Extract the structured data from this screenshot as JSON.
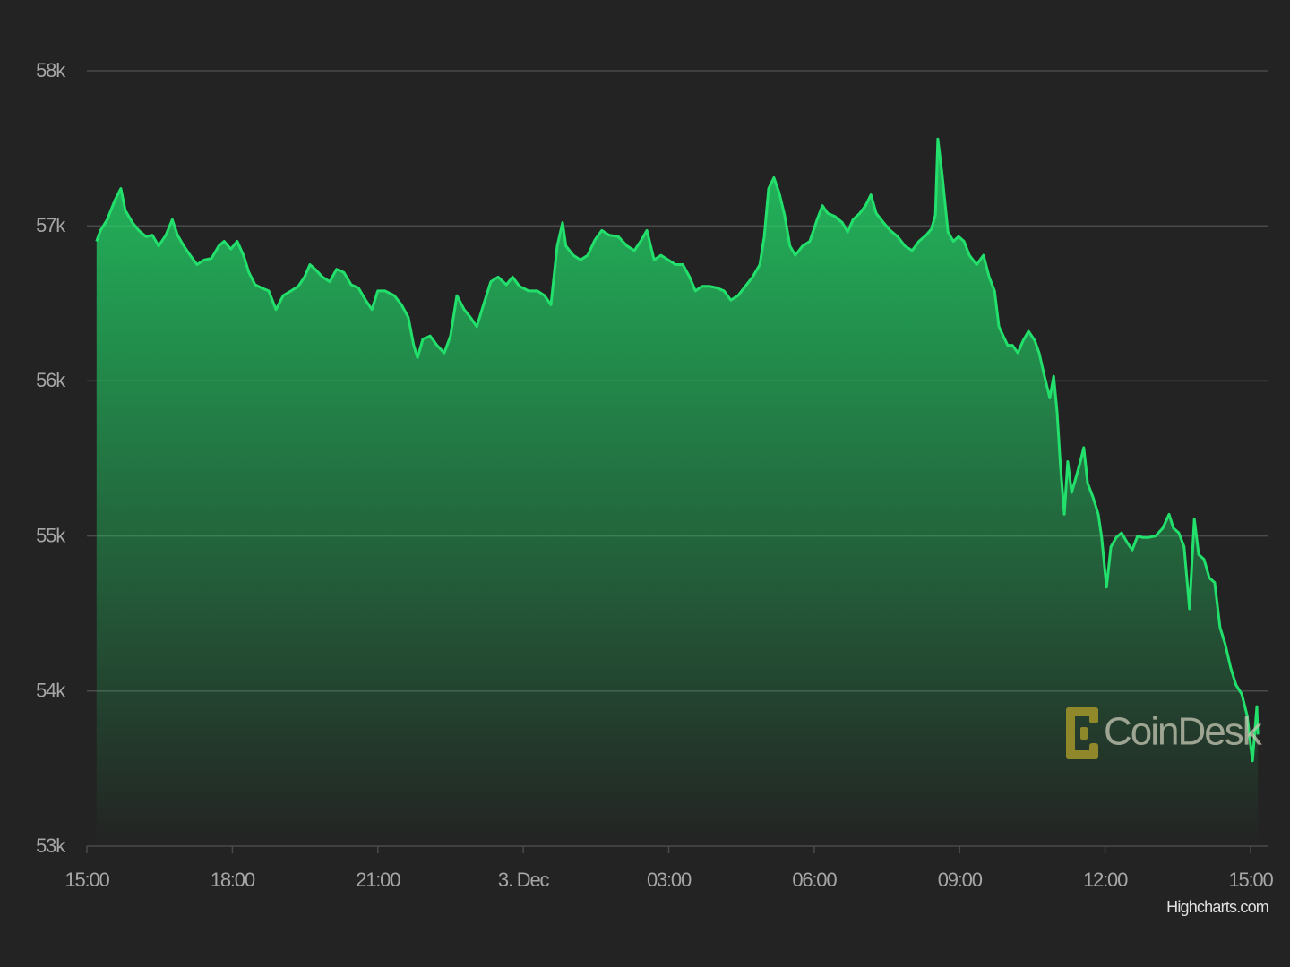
{
  "chart_data": {
    "type": "area",
    "color": "#22e06b",
    "grid": true,
    "watermark": "CoinDesk",
    "credits": "Highcharts.com",
    "ylim": [
      53000,
      58000
    ],
    "yticks": [
      {
        "value": 53000,
        "label": "53k"
      },
      {
        "value": 54000,
        "label": "54k"
      },
      {
        "value": 55000,
        "label": "55k"
      },
      {
        "value": 56000,
        "label": "56k"
      },
      {
        "value": 57000,
        "label": "57k"
      },
      {
        "value": 58000,
        "label": "58k"
      }
    ],
    "xlim": [
      0,
      24.37
    ],
    "xticks": [
      {
        "value": 0,
        "label": "15:00"
      },
      {
        "value": 3,
        "label": "18:00"
      },
      {
        "value": 6,
        "label": "21:00"
      },
      {
        "value": 9,
        "label": "3. Dec"
      },
      {
        "value": 12,
        "label": "03:00"
      },
      {
        "value": 15,
        "label": "06:00"
      },
      {
        "value": 18,
        "label": "09:00"
      },
      {
        "value": 21,
        "label": "12:00"
      },
      {
        "value": 24,
        "label": "15:00"
      }
    ],
    "x": [
      0.2,
      0.28,
      0.42,
      0.57,
      0.7,
      0.79,
      0.94,
      1.07,
      1.22,
      1.35,
      1.48,
      1.63,
      1.76,
      1.87,
      2.0,
      2.13,
      2.27,
      2.42,
      2.57,
      2.72,
      2.83,
      2.97,
      3.1,
      3.23,
      3.34,
      3.47,
      3.6,
      3.75,
      3.9,
      4.05,
      4.21,
      4.36,
      4.49,
      4.6,
      4.71,
      4.86,
      5.01,
      5.15,
      5.3,
      5.45,
      5.6,
      5.75,
      5.88,
      6.0,
      6.15,
      6.34,
      6.49,
      6.63,
      6.74,
      6.82,
      6.93,
      7.08,
      7.22,
      7.37,
      7.5,
      7.63,
      7.78,
      7.91,
      8.04,
      8.18,
      8.33,
      8.48,
      8.65,
      8.78,
      8.92,
      9.11,
      9.29,
      9.44,
      9.57,
      9.7,
      9.81,
      9.88,
      10.03,
      10.18,
      10.33,
      10.48,
      10.62,
      10.77,
      10.96,
      11.14,
      11.29,
      11.44,
      11.55,
      11.7,
      11.84,
      11.99,
      12.14,
      12.29,
      12.43,
      12.55,
      12.69,
      12.84,
      12.99,
      13.14,
      13.28,
      13.43,
      13.58,
      13.73,
      13.88,
      13.97,
      14.06,
      14.17,
      14.28,
      14.39,
      14.5,
      14.61,
      14.76,
      14.91,
      15.06,
      15.17,
      15.28,
      15.43,
      15.58,
      15.69,
      15.8,
      15.94,
      16.06,
      16.17,
      16.28,
      16.43,
      16.57,
      16.72,
      16.87,
      17.02,
      17.16,
      17.31,
      17.42,
      17.5,
      17.55,
      17.64,
      17.76,
      17.87,
      17.98,
      18.09,
      18.2,
      18.35,
      18.49,
      18.61,
      18.72,
      18.81,
      18.9,
      18.99,
      19.09,
      19.2,
      19.31,
      19.42,
      19.55,
      19.64,
      19.75,
      19.86,
      19.94,
      20.01,
      20.08,
      20.16,
      20.23,
      20.31,
      20.42,
      20.49,
      20.56,
      20.64,
      20.75,
      20.86,
      20.93,
      21.03,
      21.12,
      21.23,
      21.34,
      21.45,
      21.56,
      21.67,
      21.78,
      21.89,
      22.04,
      22.19,
      22.32,
      22.41,
      22.52,
      22.63,
      22.74,
      22.84,
      22.93,
      23.04,
      23.15,
      23.26,
      23.37,
      23.48,
      23.59,
      23.7,
      23.82,
      23.93,
      24.04,
      24.13,
      24.15
    ],
    "values": [
      56900,
      56970,
      57040,
      57160,
      57240,
      57100,
      57020,
      56970,
      56930,
      56940,
      56870,
      56940,
      57040,
      56940,
      56870,
      56810,
      56750,
      56780,
      56790,
      56870,
      56900,
      56850,
      56900,
      56810,
      56700,
      56620,
      56600,
      56580,
      56460,
      56550,
      56580,
      56610,
      56670,
      56750,
      56720,
      56670,
      56640,
      56720,
      56700,
      56620,
      56600,
      56520,
      56460,
      56580,
      56580,
      56550,
      56490,
      56410,
      56230,
      56150,
      56270,
      56290,
      56230,
      56180,
      56290,
      56550,
      56460,
      56410,
      56350,
      56490,
      56640,
      56670,
      56620,
      56670,
      56610,
      56580,
      56580,
      56550,
      56490,
      56870,
      57020,
      56870,
      56810,
      56780,
      56810,
      56910,
      56970,
      56940,
      56930,
      56870,
      56840,
      56910,
      56970,
      56780,
      56810,
      56780,
      56750,
      56750,
      56670,
      56580,
      56610,
      56610,
      56600,
      56580,
      56520,
      56550,
      56610,
      56670,
      56750,
      56930,
      57240,
      57310,
      57210,
      57070,
      56870,
      56810,
      56870,
      56900,
      57040,
      57130,
      57080,
      57060,
      57020,
      56960,
      57040,
      57080,
      57130,
      57200,
      57080,
      57020,
      56970,
      56930,
      56870,
      56840,
      56900,
      56940,
      56980,
      57070,
      57560,
      57330,
      56960,
      56900,
      56930,
      56900,
      56810,
      56750,
      56810,
      56670,
      56580,
      56350,
      56290,
      56230,
      56230,
      56180,
      56260,
      56320,
      56260,
      56180,
      56030,
      55890,
      56030,
      55800,
      55450,
      55140,
      55480,
      55280,
      55400,
      55480,
      55570,
      55340,
      55250,
      55140,
      54990,
      54670,
      54930,
      54990,
      55020,
      54960,
      54910,
      55000,
      54990,
      54990,
      55000,
      55050,
      55140,
      55050,
      55020,
      54930,
      54530,
      55110,
      54880,
      54850,
      54730,
      54700,
      54410,
      54300,
      54150,
      54040,
      53980,
      53840,
      53550,
      53900,
      53720
    ]
  }
}
